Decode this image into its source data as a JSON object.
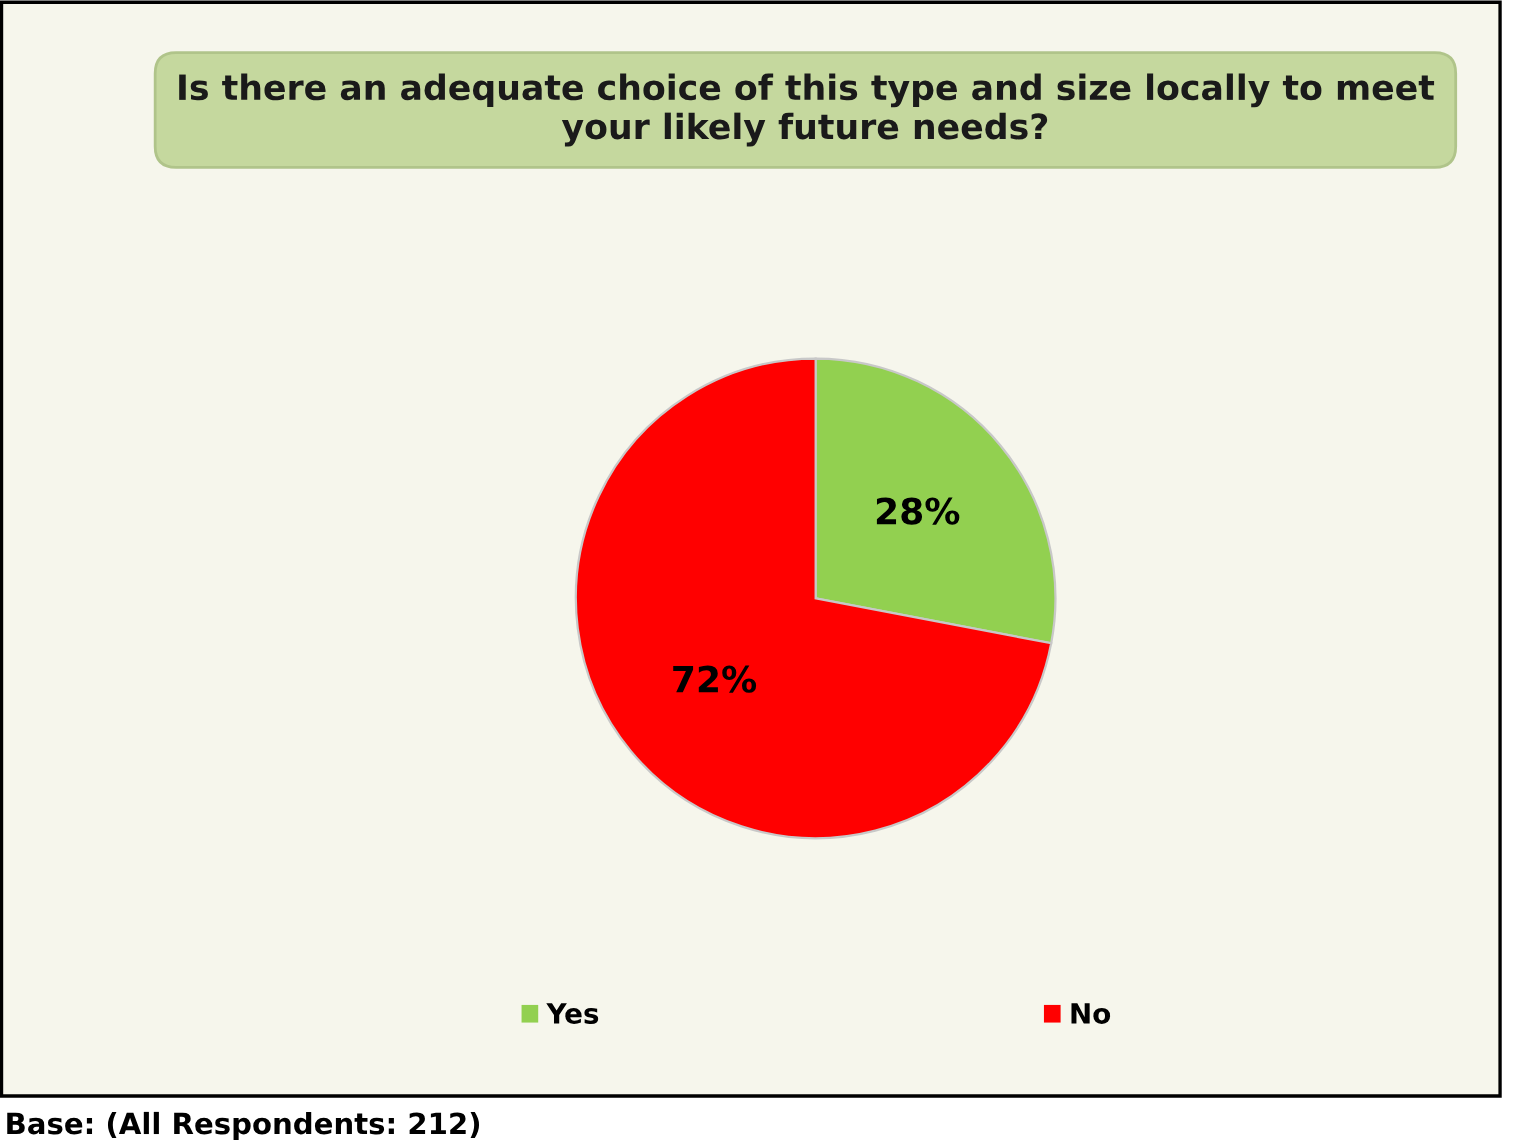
{
  "chart_data": {
    "type": "pie",
    "title": "Is there an adequate choice of this type and size locally to meet your likely future needs?",
    "categories": [
      "Yes",
      "No"
    ],
    "values": [
      28,
      72
    ],
    "colors": [
      "#92d050",
      "#ff0000"
    ],
    "value_labels": [
      "28%",
      "72%"
    ],
    "legend": "bottom",
    "annotations": [
      "Base: (All Respondents: 212)"
    ]
  }
}
